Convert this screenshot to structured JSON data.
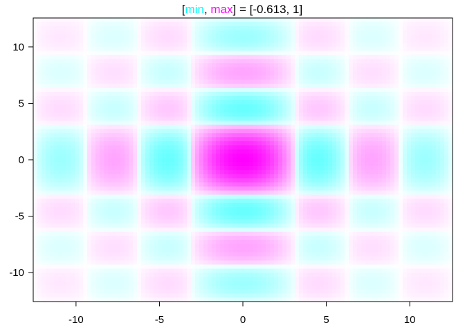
{
  "chart_data": {
    "type": "heatmap",
    "title": {
      "open_bracket": "[",
      "min_label": "min",
      "comma": ", ",
      "max_label": "max",
      "close_bracket": "]",
      "equals": " = ",
      "range_text": "[-0.613, 1]"
    },
    "min_value": -0.613,
    "max_value": 1,
    "colors": {
      "min": "#00ffff",
      "zero": "#ffffff",
      "max": "#ff00ff"
    },
    "xlim": [
      -12.566,
      12.566
    ],
    "ylim": [
      -12.566,
      12.566
    ],
    "x_ticks": [
      -10,
      -5,
      0,
      5,
      10
    ],
    "y_ticks": [
      -10,
      -5,
      0,
      5,
      10
    ],
    "x_tick_labels": [
      "-10",
      "-5",
      "0",
      "5",
      "10"
    ],
    "y_tick_labels": [
      "-10",
      "-5",
      "0",
      "5",
      "10"
    ],
    "grid": false,
    "function": "sin(x)*sin(y)/(x*y)"
  }
}
